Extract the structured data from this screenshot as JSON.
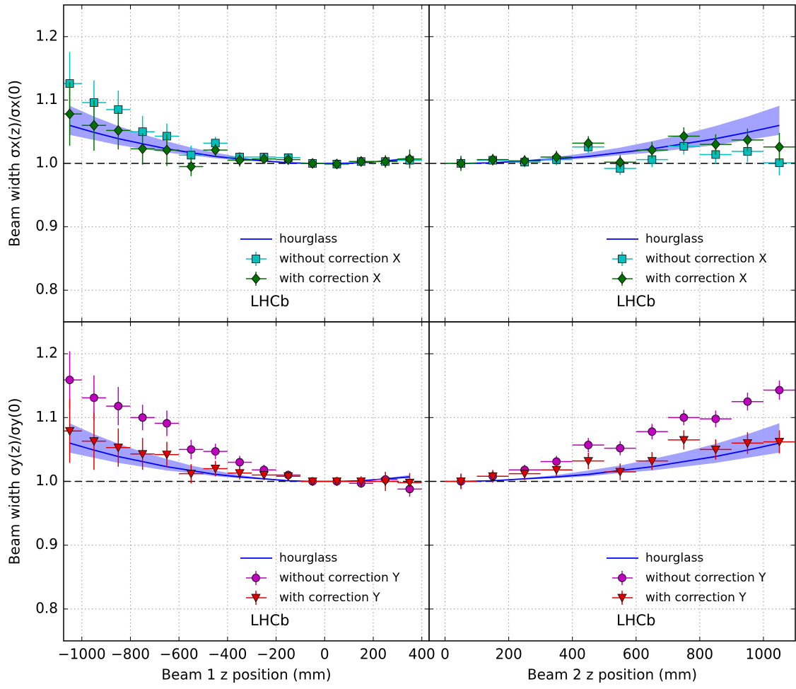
{
  "chart_data": [
    {
      "type": "errorbar",
      "y_label": "Beam width σx(z)/σx(0)",
      "annotation": "LHCb",
      "legend": "lower right",
      "grid": true,
      "reference_line": 1,
      "xlim": [
        -1075,
        430
      ],
      "ylim": [
        0.75,
        1.25
      ],
      "show_xtick_labels": false,
      "show_ytick_labels": true,
      "xticks": [
        -1000,
        -800,
        -600,
        -400,
        -200,
        0,
        200,
        400
      ],
      "yticks": [
        0.8,
        0.9,
        {
          "value": 1,
          "label": "1.0"
        },
        1.1,
        1.2
      ],
      "curve": {
        "name": "hourglass",
        "color": "#0000ff",
        "band_color": "#9999ff",
        "x": [
          -1050,
          -950,
          -850,
          -750,
          -650,
          -550,
          -450,
          -350,
          -250,
          -150,
          -50,
          50,
          150,
          250,
          350
        ],
        "values": [
          1.06,
          1.049,
          1.039,
          1.031,
          1.023,
          1.017,
          1.011,
          1.007,
          1.004,
          1.001,
          1.0,
          1.0,
          1.001,
          1.004,
          1.007
        ],
        "upper": [
          1.091,
          1.074,
          1.059,
          1.046,
          1.035,
          1.025,
          1.017,
          1.01,
          1.005,
          1.002,
          1.0,
          1.0,
          1.002,
          1.005,
          1.01
        ],
        "lower": [
          1.045,
          1.037,
          1.029,
          1.023,
          1.017,
          1.013,
          1.008,
          1.005,
          1.003,
          1.001,
          1.0,
          1.0,
          1.001,
          1.003,
          1.005
        ]
      },
      "series": [
        {
          "name": "without correction X",
          "color": "#00bfbf",
          "marker": "square",
          "x": [
            -1050,
            -950,
            -850,
            -750,
            -650,
            -550,
            -450,
            -350,
            -250,
            -150,
            -50,
            50,
            150,
            250,
            350
          ],
          "x_errors": [
            50,
            50,
            50,
            50,
            50,
            50,
            50,
            50,
            50,
            50,
            50,
            50,
            50,
            50,
            50
          ],
          "values": [
            1.126,
            1.096,
            1.085,
            1.05,
            1.043,
            1.013,
            1.032,
            1.01,
            1.01,
            1.009,
            1.0,
            0.999,
            1.003,
            1.003,
            1.005
          ],
          "errors": [
            0.05,
            0.035,
            0.03,
            0.025,
            0.02,
            0.015,
            0.01,
            0.008,
            0.007,
            0.007,
            0.006,
            0.006,
            0.007,
            0.008,
            0.01
          ]
        },
        {
          "name": "with correction X",
          "color": "#007000",
          "marker": "diamond",
          "x": [
            -1050,
            -950,
            -850,
            -750,
            -650,
            -550,
            -450,
            -350,
            -250,
            -150,
            -50,
            50,
            150,
            250,
            350
          ],
          "x_errors": [
            50,
            50,
            50,
            50,
            50,
            50,
            50,
            50,
            50,
            50,
            50,
            50,
            50,
            50,
            50
          ],
          "values": [
            1.078,
            1.06,
            1.052,
            1.023,
            1.021,
            0.995,
            1.021,
            1.005,
            1.007,
            1.006,
            1.0,
            0.999,
            1.003,
            1.003,
            1.007
          ],
          "errors": [
            0.05,
            0.04,
            0.03,
            0.025,
            0.025,
            0.015,
            0.01,
            0.01,
            0.008,
            0.008,
            0.007,
            0.007,
            0.008,
            0.01,
            0.015
          ]
        }
      ]
    },
    {
      "type": "errorbar",
      "annotation": "LHCb",
      "legend": "lower right",
      "grid": true,
      "reference_line": 1,
      "xlim": [
        -50,
        1100
      ],
      "ylim": [
        0.75,
        1.25
      ],
      "show_xtick_labels": false,
      "show_ytick_labels": false,
      "xticks": [
        0,
        200,
        400,
        600,
        800,
        1000
      ],
      "yticks": [
        0.8,
        0.9,
        1,
        1.1,
        1.2
      ],
      "curve": {
        "name": "hourglass",
        "color": "#0000ff",
        "band_color": "#9999ff",
        "x": [
          50,
          150,
          250,
          350,
          450,
          550,
          650,
          750,
          850,
          950,
          1050
        ],
        "values": [
          1.0,
          1.001,
          1.004,
          1.007,
          1.011,
          1.017,
          1.023,
          1.031,
          1.039,
          1.049,
          1.06
        ],
        "upper": [
          1.0,
          1.002,
          1.005,
          1.01,
          1.017,
          1.025,
          1.035,
          1.046,
          1.059,
          1.074,
          1.091
        ],
        "lower": [
          1.0,
          1.001,
          1.003,
          1.005,
          1.008,
          1.013,
          1.017,
          1.023,
          1.029,
          1.037,
          1.045
        ]
      },
      "series": [
        {
          "name": "without correction X",
          "color": "#00bfbf",
          "marker": "square",
          "x": [
            50,
            150,
            250,
            350,
            450,
            550,
            650,
            750,
            850,
            950,
            1050
          ],
          "x_errors": [
            50,
            50,
            50,
            50,
            50,
            50,
            50,
            50,
            50,
            50,
            50
          ],
          "values": [
            1.0,
            1.005,
            1.002,
            1.006,
            1.026,
            0.992,
            1.006,
            1.027,
            1.014,
            1.019,
            1.001
          ],
          "errors": [
            0.01,
            0.008,
            0.008,
            0.009,
            0.01,
            0.01,
            0.012,
            0.013,
            0.015,
            0.017,
            0.02
          ]
        },
        {
          "name": "with correction X",
          "color": "#007000",
          "marker": "diamond",
          "x": [
            50,
            150,
            250,
            350,
            450,
            550,
            650,
            750,
            850,
            950,
            1050
          ],
          "x_errors": [
            50,
            50,
            50,
            50,
            50,
            50,
            50,
            50,
            50,
            50,
            50
          ],
          "values": [
            1.0,
            1.006,
            1.004,
            1.01,
            1.032,
            1.002,
            1.021,
            1.043,
            1.03,
            1.037,
            1.026
          ],
          "errors": [
            0.012,
            0.009,
            0.009,
            0.01,
            0.011,
            0.011,
            0.013,
            0.014,
            0.016,
            0.018,
            0.022
          ]
        }
      ]
    },
    {
      "type": "errorbar",
      "x_label": "Beam 1 z position (mm)",
      "y_label": "Beam width σy(z)/σy(0)",
      "annotation": "LHCb",
      "legend": "lower right",
      "grid": true,
      "reference_line": 1,
      "xlim": [
        -1075,
        430
      ],
      "ylim": [
        0.75,
        1.25
      ],
      "show_xtick_labels": true,
      "show_ytick_labels": true,
      "xticks": [
        {
          "value": -1000,
          "label": "−1000"
        },
        {
          "value": -800,
          "label": "−800"
        },
        {
          "value": -600,
          "label": "−600"
        },
        {
          "value": -400,
          "label": "−400"
        },
        {
          "value": -200,
          "label": "−200"
        },
        0,
        200,
        400
      ],
      "yticks": [
        0.8,
        0.9,
        {
          "value": 1,
          "label": "1.0"
        },
        1.1,
        1.2
      ],
      "curve": {
        "name": "hourglass",
        "color": "#0000ff",
        "band_color": "#9999ff",
        "x": [
          -1050,
          -950,
          -850,
          -750,
          -650,
          -550,
          -450,
          -350,
          -250,
          -150,
          -50,
          50,
          150,
          250,
          350
        ],
        "values": [
          1.06,
          1.049,
          1.039,
          1.031,
          1.023,
          1.017,
          1.011,
          1.007,
          1.004,
          1.001,
          1.0,
          1.0,
          1.001,
          1.004,
          1.007
        ],
        "upper": [
          1.091,
          1.074,
          1.059,
          1.046,
          1.035,
          1.025,
          1.017,
          1.01,
          1.005,
          1.002,
          1.0,
          1.0,
          1.002,
          1.005,
          1.01
        ],
        "lower": [
          1.045,
          1.037,
          1.029,
          1.023,
          1.017,
          1.013,
          1.008,
          1.005,
          1.003,
          1.001,
          1.0,
          1.0,
          1.001,
          1.003,
          1.005
        ]
      },
      "series": [
        {
          "name": "without correction Y",
          "color": "#bf00bf",
          "marker": "circle",
          "x": [
            -1050,
            -950,
            -850,
            -750,
            -650,
            -550,
            -450,
            -350,
            -250,
            -150,
            -50,
            50,
            150,
            250,
            350
          ],
          "x_errors": [
            50,
            50,
            50,
            50,
            50,
            50,
            50,
            50,
            50,
            50,
            50,
            50,
            50,
            50,
            50
          ],
          "values": [
            1.159,
            1.131,
            1.118,
            1.1,
            1.091,
            1.05,
            1.047,
            1.03,
            1.018,
            1.01,
            1.0,
            1.0,
            0.997,
            1.003,
            0.988
          ],
          "errors": [
            0.045,
            0.035,
            0.03,
            0.02,
            0.02,
            0.015,
            0.012,
            0.01,
            0.008,
            0.007,
            0.006,
            0.006,
            0.007,
            0.01,
            0.012
          ]
        },
        {
          "name": "with correction Y",
          "color": "#e00000",
          "marker": "triangle-down",
          "x": [
            -1050,
            -950,
            -850,
            -750,
            -650,
            -550,
            -450,
            -350,
            -250,
            -150,
            -50,
            50,
            150,
            250,
            350
          ],
          "x_errors": [
            50,
            50,
            50,
            50,
            50,
            50,
            50,
            50,
            50,
            50,
            50,
            50,
            50,
            50,
            50
          ],
          "values": [
            1.079,
            1.063,
            1.053,
            1.043,
            1.042,
            1.012,
            1.02,
            1.013,
            1.01,
            1.008,
            1.0,
            1.0,
            1.0,
            1.0,
            0.998
          ],
          "errors": [
            0.05,
            0.045,
            0.03,
            0.025,
            0.02,
            0.015,
            0.012,
            0.01,
            0.008,
            0.007,
            0.006,
            0.007,
            0.008,
            0.015,
            0.015
          ]
        }
      ]
    },
    {
      "type": "errorbar",
      "x_label": "Beam 2 z position (mm)",
      "annotation": "LHCb",
      "legend": "lower right",
      "grid": true,
      "reference_line": 1,
      "xlim": [
        -50,
        1100
      ],
      "ylim": [
        0.75,
        1.25
      ],
      "show_xtick_labels": true,
      "show_ytick_labels": false,
      "xticks": [
        0,
        200,
        400,
        600,
        800,
        1000
      ],
      "yticks": [
        0.8,
        0.9,
        1,
        1.1,
        1.2
      ],
      "curve": {
        "name": "hourglass",
        "color": "#0000ff",
        "band_color": "#9999ff",
        "x": [
          50,
          150,
          250,
          350,
          450,
          550,
          650,
          750,
          850,
          950,
          1050
        ],
        "values": [
          1.0,
          1.001,
          1.004,
          1.007,
          1.011,
          1.017,
          1.023,
          1.031,
          1.039,
          1.049,
          1.06
        ],
        "upper": [
          1.0,
          1.002,
          1.005,
          1.01,
          1.017,
          1.025,
          1.035,
          1.046,
          1.059,
          1.074,
          1.091
        ],
        "lower": [
          1.0,
          1.001,
          1.003,
          1.005,
          1.008,
          1.013,
          1.017,
          1.023,
          1.029,
          1.037,
          1.045
        ]
      },
      "series": [
        {
          "name": "without correction Y",
          "color": "#bf00bf",
          "marker": "circle",
          "x": [
            50,
            150,
            250,
            350,
            450,
            550,
            650,
            750,
            850,
            950,
            1050
          ],
          "x_errors": [
            50,
            50,
            50,
            50,
            50,
            50,
            50,
            50,
            50,
            50,
            50
          ],
          "values": [
            1.0,
            1.008,
            1.018,
            1.031,
            1.057,
            1.052,
            1.078,
            1.1,
            1.098,
            1.125,
            1.143
          ],
          "errors": [
            0.012,
            0.008,
            0.008,
            0.009,
            0.011,
            0.011,
            0.012,
            0.012,
            0.013,
            0.014,
            0.015
          ]
        },
        {
          "name": "with correction Y",
          "color": "#e00000",
          "marker": "triangle-down",
          "x": [
            50,
            150,
            250,
            350,
            450,
            550,
            650,
            750,
            850,
            950,
            1050
          ],
          "x_errors": [
            50,
            50,
            50,
            50,
            50,
            50,
            50,
            50,
            50,
            50,
            50
          ],
          "values": [
            1.0,
            1.008,
            1.012,
            1.018,
            1.032,
            1.015,
            1.032,
            1.065,
            1.05,
            1.06,
            1.062
          ],
          "errors": [
            0.012,
            0.01,
            0.01,
            0.011,
            0.013,
            0.013,
            0.014,
            0.015,
            0.016,
            0.017,
            0.018
          ]
        }
      ]
    }
  ]
}
